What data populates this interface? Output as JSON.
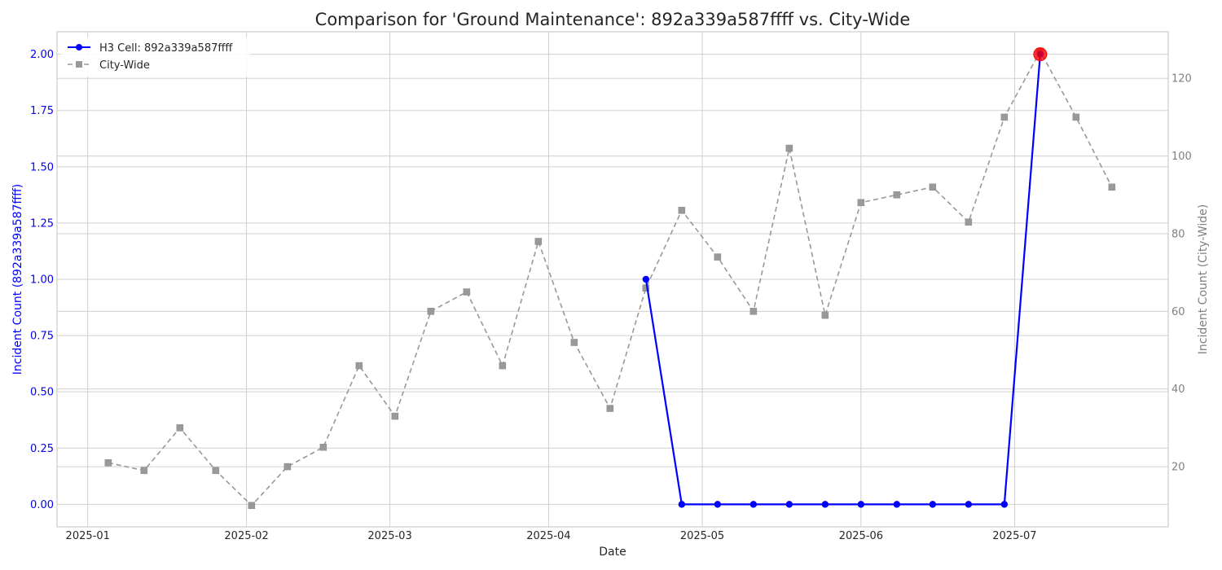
{
  "chart_data": {
    "type": "line",
    "title": "Comparison for 'Ground Maintenance': 892a339a587ffff vs. City-Wide",
    "xlabel": "Date",
    "ylabel_left": "Incident Count (892a339a587ffff)",
    "ylabel_right": "Incident Count (City-Wide)",
    "x_ticks": [
      "2025-01-01",
      "2025-02-01",
      "2025-03-01",
      "2025-04-01",
      "2025-05-01",
      "2025-06-01",
      "2025-07-01"
    ],
    "x_tick_labels": [
      "2025-01",
      "2025-02",
      "2025-03",
      "2025-04",
      "2025-05",
      "2025-06",
      "2025-07"
    ],
    "xlim": [
      "2024-12-26",
      "2025-07-31"
    ],
    "ylim_left": [
      -0.1,
      2.1
    ],
    "ylim_right": [
      4.5,
      132
    ],
    "y_ticks_left": [
      "0.00",
      "0.25",
      "0.50",
      "0.75",
      "1.00",
      "1.25",
      "1.50",
      "1.75",
      "2.00"
    ],
    "y_ticks_right": [
      "20",
      "40",
      "60",
      "80",
      "100",
      "120"
    ],
    "grid": true,
    "legend_position": "upper-left",
    "colors": {
      "cell_series": "#0000ff",
      "city_series": "#999999",
      "highlight": "#ff0000",
      "left_axis": "#0000ff",
      "right_axis": "#808080"
    },
    "series": [
      {
        "name": "H3 Cell: 892a339a587ffff",
        "axis": "left",
        "style": "solid",
        "marker": "circle",
        "points": [
          {
            "x": "2025-04-20",
            "y": 1
          },
          {
            "x": "2025-04-27",
            "y": 0
          },
          {
            "x": "2025-05-04",
            "y": 0
          },
          {
            "x": "2025-05-11",
            "y": 0
          },
          {
            "x": "2025-05-18",
            "y": 0
          },
          {
            "x": "2025-05-25",
            "y": 0
          },
          {
            "x": "2025-06-01",
            "y": 0
          },
          {
            "x": "2025-06-08",
            "y": 0
          },
          {
            "x": "2025-06-15",
            "y": 0
          },
          {
            "x": "2025-06-22",
            "y": 0
          },
          {
            "x": "2025-06-29",
            "y": 0
          },
          {
            "x": "2025-07-06",
            "y": 2
          }
        ]
      },
      {
        "name": "City-Wide",
        "axis": "right",
        "style": "dashed",
        "marker": "square",
        "points": [
          {
            "x": "2025-01-05",
            "y": 21
          },
          {
            "x": "2025-01-12",
            "y": 19
          },
          {
            "x": "2025-01-19",
            "y": 30
          },
          {
            "x": "2025-01-26",
            "y": 19
          },
          {
            "x": "2025-02-02",
            "y": 10
          },
          {
            "x": "2025-02-09",
            "y": 20
          },
          {
            "x": "2025-02-16",
            "y": 25
          },
          {
            "x": "2025-02-23",
            "y": 46
          },
          {
            "x": "2025-03-02",
            "y": 33
          },
          {
            "x": "2025-03-09",
            "y": 60
          },
          {
            "x": "2025-03-16",
            "y": 65
          },
          {
            "x": "2025-03-23",
            "y": 46
          },
          {
            "x": "2025-03-30",
            "y": 78
          },
          {
            "x": "2025-04-06",
            "y": 52
          },
          {
            "x": "2025-04-13",
            "y": 35
          },
          {
            "x": "2025-04-20",
            "y": 66
          },
          {
            "x": "2025-04-27",
            "y": 86
          },
          {
            "x": "2025-05-04",
            "y": 74
          },
          {
            "x": "2025-05-11",
            "y": 60
          },
          {
            "x": "2025-05-18",
            "y": 102
          },
          {
            "x": "2025-05-25",
            "y": 59
          },
          {
            "x": "2025-06-01",
            "y": 88
          },
          {
            "x": "2025-06-08",
            "y": 90
          },
          {
            "x": "2025-06-15",
            "y": 92
          },
          {
            "x": "2025-06-22",
            "y": 83
          },
          {
            "x": "2025-06-29",
            "y": 110
          },
          {
            "x": "2025-07-06",
            "y": 127
          },
          {
            "x": "2025-07-13",
            "y": 110
          },
          {
            "x": "2025-07-20",
            "y": 92
          }
        ]
      }
    ],
    "highlight_point": {
      "series": "H3 Cell: 892a339a587ffff",
      "x": "2025-07-06",
      "y": 2
    }
  }
}
